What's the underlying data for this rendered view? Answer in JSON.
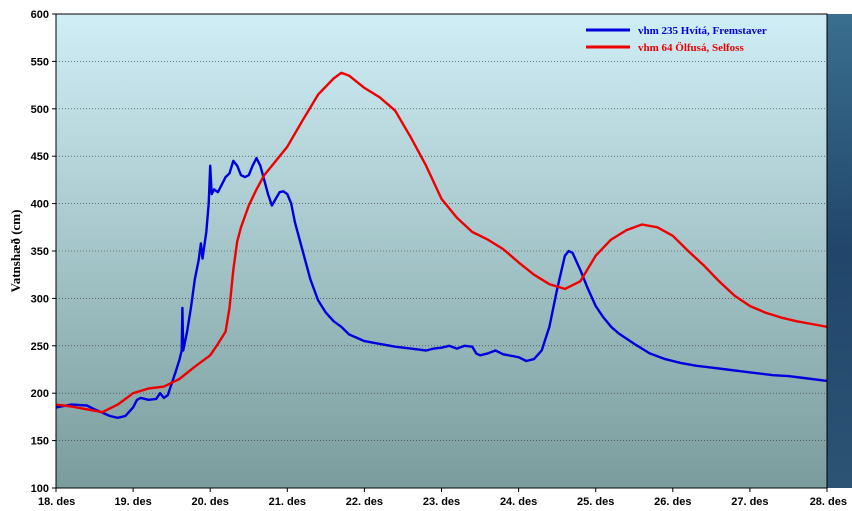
{
  "chart_data": {
    "type": "line",
    "title": "",
    "xlabel": "",
    "ylabel": "Vatnshæð (cm)",
    "x_tick_labels": [
      "18. des",
      "19. des",
      "20. des",
      "21. des",
      "22. des",
      "23. des",
      "24. des",
      "25. des",
      "26. des",
      "27. des",
      "28. des"
    ],
    "y_tick_labels": [
      "100",
      "150",
      "200",
      "250",
      "300",
      "350",
      "400",
      "450",
      "500",
      "550",
      "600"
    ],
    "ylim": [
      100,
      600
    ],
    "xlim_days": [
      18,
      28
    ],
    "grid": "horizontal dotted",
    "legend_position": "top-right",
    "colors": {
      "plot_top": "#cfeef6",
      "plot_bottom": "#7a9c9c",
      "hvita": "#0000dd",
      "olfusa": "#ee0000"
    },
    "series": [
      {
        "name": "vhm 235 Hvítá, Fremstaver",
        "color": "#0000dd",
        "points": [
          [
            18.0,
            185
          ],
          [
            18.2,
            188
          ],
          [
            18.4,
            187
          ],
          [
            18.5,
            183
          ],
          [
            18.7,
            176
          ],
          [
            18.8,
            174
          ],
          [
            18.9,
            176
          ],
          [
            19.0,
            185
          ],
          [
            19.05,
            193
          ],
          [
            19.1,
            195
          ],
          [
            19.2,
            193
          ],
          [
            19.3,
            194
          ],
          [
            19.35,
            200
          ],
          [
            19.4,
            195
          ],
          [
            19.45,
            198
          ],
          [
            19.5,
            210
          ],
          [
            19.55,
            222
          ],
          [
            19.6,
            235
          ],
          [
            19.63,
            245
          ],
          [
            19.64,
            290
          ],
          [
            19.65,
            245
          ],
          [
            19.7,
            265
          ],
          [
            19.75,
            290
          ],
          [
            19.8,
            320
          ],
          [
            19.85,
            340
          ],
          [
            19.88,
            358
          ],
          [
            19.9,
            342
          ],
          [
            19.95,
            370
          ],
          [
            19.98,
            400
          ],
          [
            20.0,
            440
          ],
          [
            20.02,
            410
          ],
          [
            20.05,
            415
          ],
          [
            20.1,
            412
          ],
          [
            20.15,
            420
          ],
          [
            20.2,
            428
          ],
          [
            20.25,
            432
          ],
          [
            20.3,
            445
          ],
          [
            20.35,
            440
          ],
          [
            20.4,
            430
          ],
          [
            20.45,
            428
          ],
          [
            20.5,
            430
          ],
          [
            20.55,
            440
          ],
          [
            20.6,
            448
          ],
          [
            20.65,
            440
          ],
          [
            20.7,
            425
          ],
          [
            20.75,
            410
          ],
          [
            20.8,
            398
          ],
          [
            20.85,
            405
          ],
          [
            20.9,
            412
          ],
          [
            20.95,
            413
          ],
          [
            21.0,
            410
          ],
          [
            21.05,
            400
          ],
          [
            21.1,
            380
          ],
          [
            21.2,
            350
          ],
          [
            21.3,
            320
          ],
          [
            21.4,
            298
          ],
          [
            21.5,
            285
          ],
          [
            21.6,
            276
          ],
          [
            21.7,
            270
          ],
          [
            21.8,
            262
          ],
          [
            22.0,
            255
          ],
          [
            22.2,
            252
          ],
          [
            22.4,
            249
          ],
          [
            22.6,
            247
          ],
          [
            22.8,
            245
          ],
          [
            22.9,
            247
          ],
          [
            23.0,
            248
          ],
          [
            23.1,
            250
          ],
          [
            23.2,
            247
          ],
          [
            23.3,
            250
          ],
          [
            23.4,
            249
          ],
          [
            23.45,
            242
          ],
          [
            23.5,
            240
          ],
          [
            23.6,
            242
          ],
          [
            23.7,
            245
          ],
          [
            23.8,
            241
          ],
          [
            24.0,
            238
          ],
          [
            24.1,
            234
          ],
          [
            24.2,
            236
          ],
          [
            24.3,
            245
          ],
          [
            24.4,
            270
          ],
          [
            24.5,
            310
          ],
          [
            24.6,
            345
          ],
          [
            24.65,
            350
          ],
          [
            24.7,
            348
          ],
          [
            24.8,
            330
          ],
          [
            24.9,
            310
          ],
          [
            25.0,
            292
          ],
          [
            25.1,
            280
          ],
          [
            25.2,
            270
          ],
          [
            25.3,
            263
          ],
          [
            25.5,
            252
          ],
          [
            25.7,
            242
          ],
          [
            25.9,
            236
          ],
          [
            26.1,
            232
          ],
          [
            26.3,
            229
          ],
          [
            26.5,
            227
          ],
          [
            26.7,
            225
          ],
          [
            26.9,
            223
          ],
          [
            27.1,
            221
          ],
          [
            27.3,
            219
          ],
          [
            27.5,
            218
          ],
          [
            27.7,
            216
          ],
          [
            28.0,
            213
          ]
        ]
      },
      {
        "name": "vhm 64 Ölfusá, Selfoss",
        "color": "#ee0000",
        "points": [
          [
            18.0,
            188
          ],
          [
            18.2,
            186
          ],
          [
            18.4,
            183
          ],
          [
            18.6,
            180
          ],
          [
            18.8,
            188
          ],
          [
            19.0,
            200
          ],
          [
            19.2,
            205
          ],
          [
            19.4,
            207
          ],
          [
            19.6,
            215
          ],
          [
            19.8,
            228
          ],
          [
            20.0,
            240
          ],
          [
            20.1,
            252
          ],
          [
            20.2,
            265
          ],
          [
            20.25,
            290
          ],
          [
            20.3,
            330
          ],
          [
            20.35,
            360
          ],
          [
            20.4,
            375
          ],
          [
            20.5,
            398
          ],
          [
            20.6,
            415
          ],
          [
            20.7,
            430
          ],
          [
            20.8,
            440
          ],
          [
            21.0,
            460
          ],
          [
            21.2,
            488
          ],
          [
            21.4,
            515
          ],
          [
            21.6,
            532
          ],
          [
            21.7,
            538
          ],
          [
            21.8,
            535
          ],
          [
            22.0,
            522
          ],
          [
            22.2,
            512
          ],
          [
            22.4,
            498
          ],
          [
            22.6,
            470
          ],
          [
            22.8,
            440
          ],
          [
            23.0,
            405
          ],
          [
            23.2,
            385
          ],
          [
            23.4,
            370
          ],
          [
            23.6,
            362
          ],
          [
            23.8,
            352
          ],
          [
            24.0,
            338
          ],
          [
            24.2,
            325
          ],
          [
            24.4,
            315
          ],
          [
            24.6,
            310
          ],
          [
            24.8,
            318
          ],
          [
            25.0,
            345
          ],
          [
            25.2,
            362
          ],
          [
            25.4,
            372
          ],
          [
            25.6,
            378
          ],
          [
            25.8,
            375
          ],
          [
            26.0,
            366
          ],
          [
            26.2,
            350
          ],
          [
            26.4,
            335
          ],
          [
            26.6,
            318
          ],
          [
            26.8,
            303
          ],
          [
            27.0,
            292
          ],
          [
            27.2,
            285
          ],
          [
            27.4,
            280
          ],
          [
            27.6,
            276
          ],
          [
            27.8,
            273
          ],
          [
            28.0,
            270
          ]
        ]
      }
    ]
  }
}
